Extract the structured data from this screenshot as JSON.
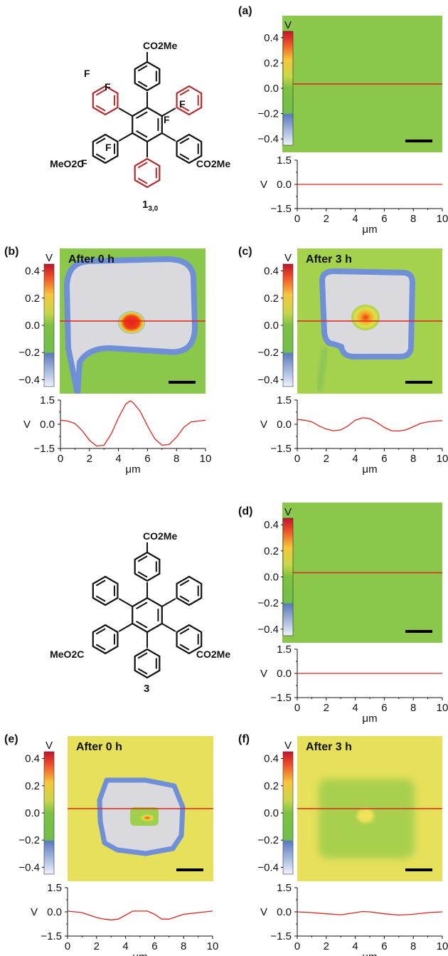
{
  "colors": {
    "line": "#e2231a",
    "green": "#7dc242",
    "yellow_green": "#a9d24d",
    "yellow": "#eadf5a",
    "grey_fill": "#d9d9de",
    "blue_edge": "#6f8fd8",
    "red_hot": "#e2231a",
    "axis": "#111111"
  },
  "colorbar": {
    "unit": "V",
    "ticks": [
      "0.4",
      "0.2",
      "0.0",
      "−0.2",
      "−0.4"
    ],
    "tick_values": [
      0.4,
      0.2,
      0.0,
      -0.2,
      -0.4
    ]
  },
  "molecules": [
    {
      "id": "1_3_0",
      "label_main": "1",
      "label_sub": "3,0",
      "top_group": "CO2Me",
      "left_group": "MeO2C",
      "right_group": "CO2Me",
      "fluorine": "F",
      "fluorinated_rings_color": "#b52a2a"
    },
    {
      "id": "3",
      "label_main": "3",
      "top_group": "CO2Me",
      "left_group": "MeO2C",
      "right_group": "CO2Me"
    }
  ],
  "chart_data": [
    {
      "type": "line",
      "panel": "(a)",
      "title": "",
      "map_state": "uniform-green",
      "xlabel": "μm",
      "ylabel": "V",
      "xlim": [
        0,
        10
      ],
      "ylim": [
        -1.5,
        1.5
      ],
      "xticks": [
        "0",
        "2",
        "4",
        "6",
        "8",
        "10"
      ],
      "yticks": [
        "1.5",
        "0.0",
        "−1.5"
      ],
      "x": [
        0,
        1,
        2,
        3,
        4,
        5,
        6,
        7,
        8,
        9,
        10
      ],
      "y": [
        0,
        0,
        0,
        0,
        0,
        0,
        0,
        0,
        0,
        0,
        0
      ]
    },
    {
      "type": "line",
      "panel": "(b)",
      "title": "After 0 h",
      "map_state": "square-strong",
      "xlabel": "μm",
      "ylabel": "V",
      "xlim": [
        0,
        10
      ],
      "ylim": [
        -1.5,
        1.5
      ],
      "xticks": [
        "0",
        "2",
        "4",
        "6",
        "8",
        "10"
      ],
      "yticks": [
        "1.5",
        "0.0",
        "−1.5"
      ],
      "x": [
        0,
        0.5,
        1,
        1.5,
        2,
        2.5,
        3,
        3.5,
        4,
        4.5,
        4.8,
        5,
        5.5,
        6,
        6.5,
        7,
        7.5,
        8,
        8.5,
        9,
        9.5,
        10
      ],
      "y": [
        0.25,
        0.2,
        0.05,
        -0.4,
        -1.0,
        -1.35,
        -1.3,
        -0.6,
        0.4,
        1.25,
        1.45,
        1.35,
        0.8,
        -0.1,
        -0.9,
        -1.3,
        -1.25,
        -0.8,
        -0.2,
        0.15,
        0.2,
        0.25
      ]
    },
    {
      "type": "line",
      "panel": "(c)",
      "title": "After 3 h",
      "map_state": "square-weak",
      "xlabel": "μm",
      "ylabel": "V",
      "xlim": [
        0,
        10
      ],
      "ylim": [
        -1.5,
        1.5
      ],
      "xticks": [
        "0",
        "2",
        "4",
        "6",
        "8",
        "10"
      ],
      "yticks": [
        "1.5",
        "0.0",
        "−1.5"
      ],
      "x": [
        0,
        0.5,
        1,
        1.5,
        2,
        2.5,
        3,
        3.5,
        4,
        4.5,
        5,
        5.5,
        6,
        6.5,
        7,
        7.5,
        8,
        8.5,
        9,
        9.5,
        10
      ],
      "y": [
        0.3,
        0.25,
        0.15,
        -0.1,
        -0.3,
        -0.4,
        -0.35,
        -0.1,
        0.25,
        0.4,
        0.35,
        0.1,
        -0.2,
        -0.4,
        -0.42,
        -0.35,
        -0.15,
        0.05,
        0.15,
        0.2,
        0.22
      ]
    },
    {
      "type": "line",
      "panel": "(d)",
      "title": "",
      "map_state": "uniform-green",
      "xlabel": "μm",
      "ylabel": "V",
      "xlim": [
        0,
        10
      ],
      "ylim": [
        -1.5,
        1.5
      ],
      "xticks": [
        "0",
        "2",
        "4",
        "6",
        "8",
        "10"
      ],
      "yticks": [
        "1.5",
        "0.0",
        "−1.5"
      ],
      "x": [
        0,
        1,
        2,
        3,
        4,
        5,
        6,
        7,
        8,
        9,
        10
      ],
      "y": [
        0,
        0,
        0,
        0,
        0,
        0,
        0,
        0,
        0,
        0,
        0
      ]
    },
    {
      "type": "line",
      "panel": "(e)",
      "title": "After 0 h",
      "map_state": "square-broken",
      "xlabel": "μm",
      "ylabel": "V",
      "xlim": [
        0,
        10
      ],
      "ylim": [
        -1.5,
        1.5
      ],
      "xticks": [
        "0",
        "2",
        "4",
        "6",
        "8",
        "10"
      ],
      "yticks": [
        "1.5",
        "0.0",
        "−1.5"
      ],
      "x": [
        0,
        0.5,
        1,
        1.5,
        2,
        2.5,
        3,
        3.5,
        4,
        4.5,
        5,
        5.5,
        6,
        6.5,
        7,
        7.5,
        8,
        8.5,
        9,
        9.5,
        10
      ],
      "y": [
        0.05,
        0.0,
        -0.05,
        -0.2,
        -0.35,
        -0.45,
        -0.5,
        -0.45,
        -0.2,
        0.05,
        0.05,
        0.05,
        -0.15,
        -0.45,
        -0.45,
        -0.3,
        -0.15,
        -0.1,
        -0.05,
        0.0,
        0.05
      ]
    },
    {
      "type": "line",
      "panel": "(f)",
      "title": "After 3 h",
      "map_state": "faint-square",
      "xlabel": "μm",
      "ylabel": "V",
      "xlim": [
        0,
        10
      ],
      "ylim": [
        -1.5,
        1.5
      ],
      "xticks": [
        "0",
        "2",
        "4",
        "6",
        "8",
        "10"
      ],
      "yticks": [
        "1.5",
        "0.0",
        "−1.5"
      ],
      "x": [
        0,
        1,
        2,
        3,
        4,
        4.5,
        5,
        6,
        7,
        8,
        9,
        10
      ],
      "y": [
        0.0,
        -0.05,
        -0.12,
        -0.18,
        -0.05,
        0.02,
        0.0,
        -0.12,
        -0.2,
        -0.15,
        -0.05,
        0.0
      ]
    }
  ]
}
